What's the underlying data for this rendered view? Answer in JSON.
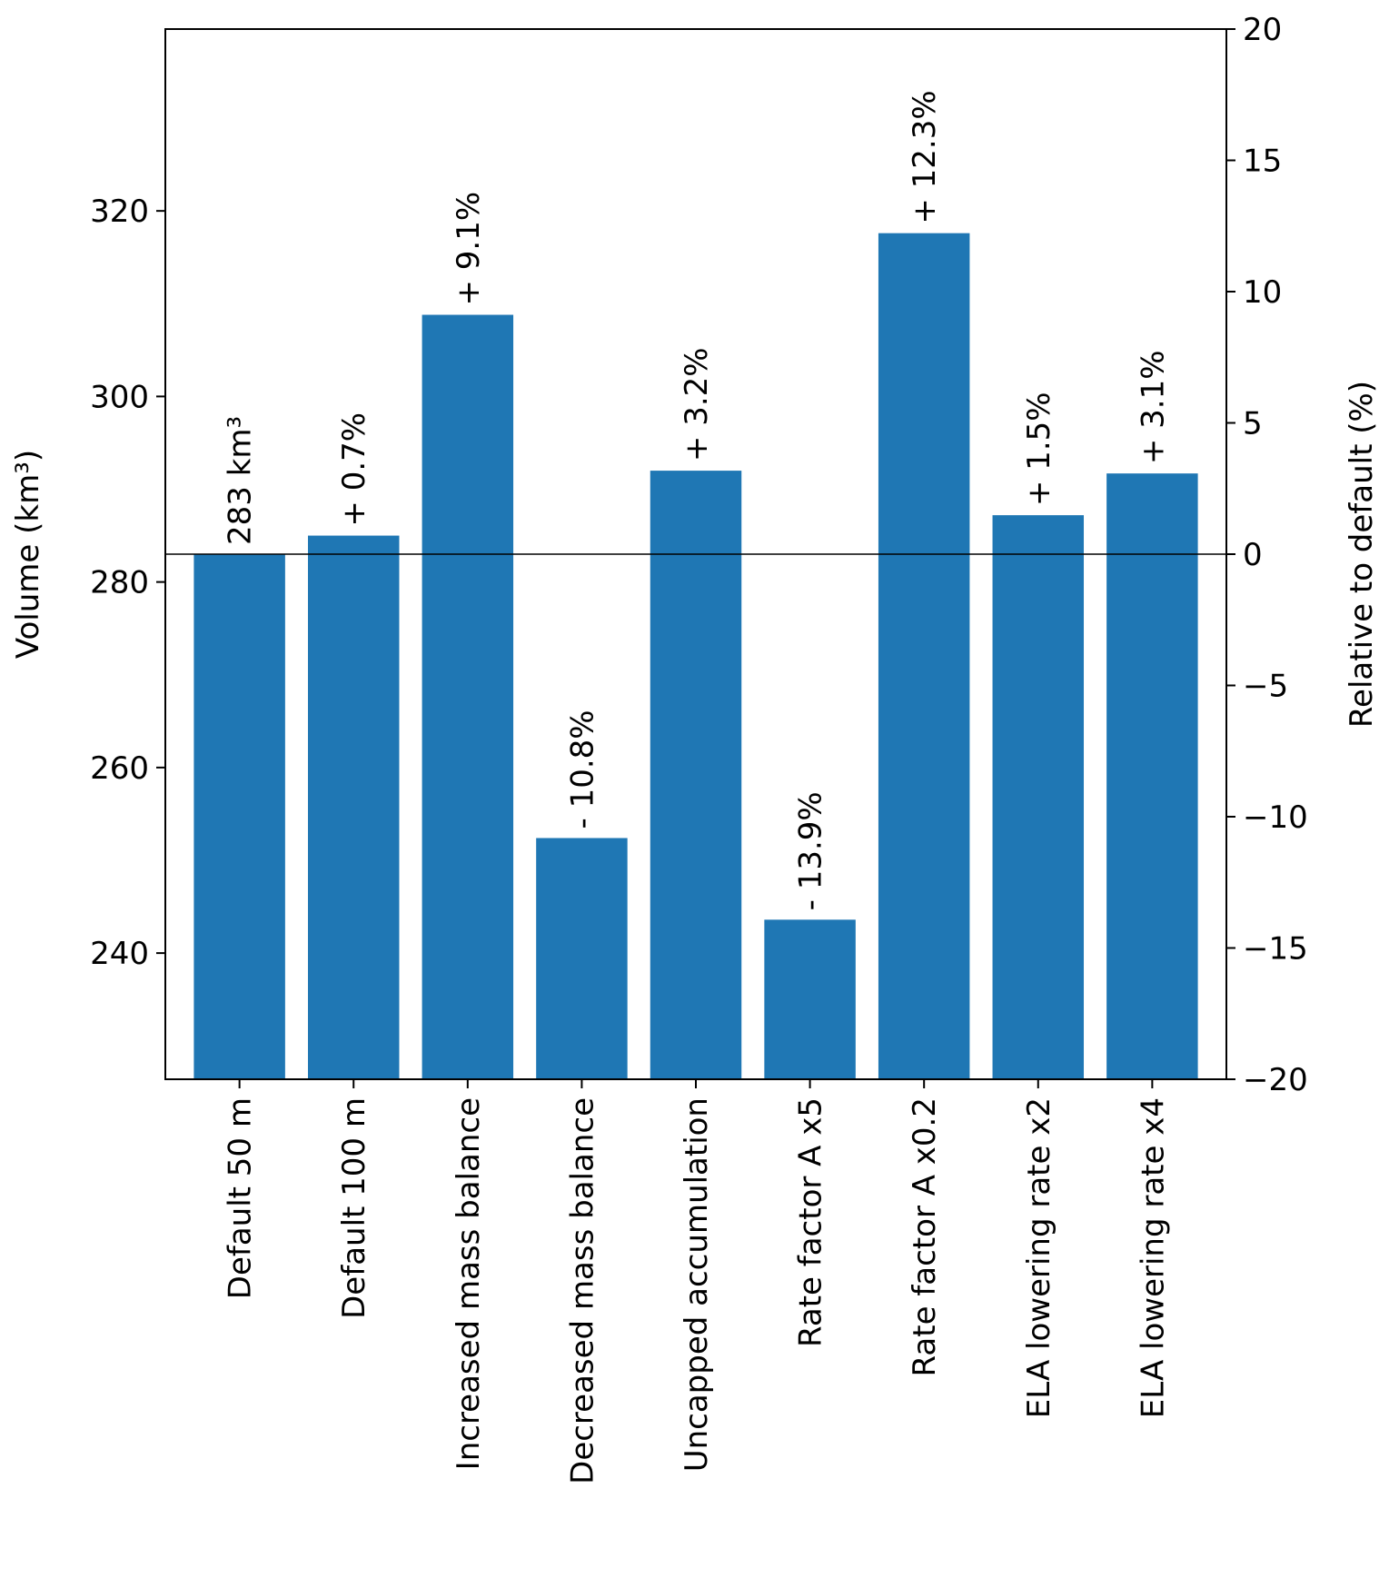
{
  "chart_data": {
    "type": "bar",
    "categories": [
      "Default 50 m",
      "Default 100 m",
      "Increased mass balance",
      "Decreased mass balance",
      "Uncapped accumulation",
      "Rate factor A x5",
      "Rate factor A x0.2",
      "ELA lowering rate x2",
      "ELA lowering rate x4"
    ],
    "values": [
      283,
      285,
      308.8,
      252.4,
      292,
      243.6,
      317.6,
      287.2,
      291.7
    ],
    "bar_labels": [
      "283 km³",
      "+ 0.7%",
      "+ 9.1%",
      "- 10.8%",
      "+ 3.2%",
      "- 13.9%",
      "+ 12.3%",
      "+ 1.5%",
      "+ 3.1%"
    ],
    "ylabel": "Volume (km³)",
    "ylabel_right": "Relative to default (%)",
    "ylim": [
      226.4,
      339.6
    ],
    "yticks": [
      240,
      260,
      280,
      300,
      320
    ],
    "ylim_right": [
      -20,
      20
    ],
    "yticks_right": [
      20,
      15,
      10,
      5,
      0,
      -5,
      -10,
      -15,
      -20
    ],
    "reference_line": 283,
    "bar_color": "#1f77b4",
    "grid": false,
    "legend": "none"
  }
}
